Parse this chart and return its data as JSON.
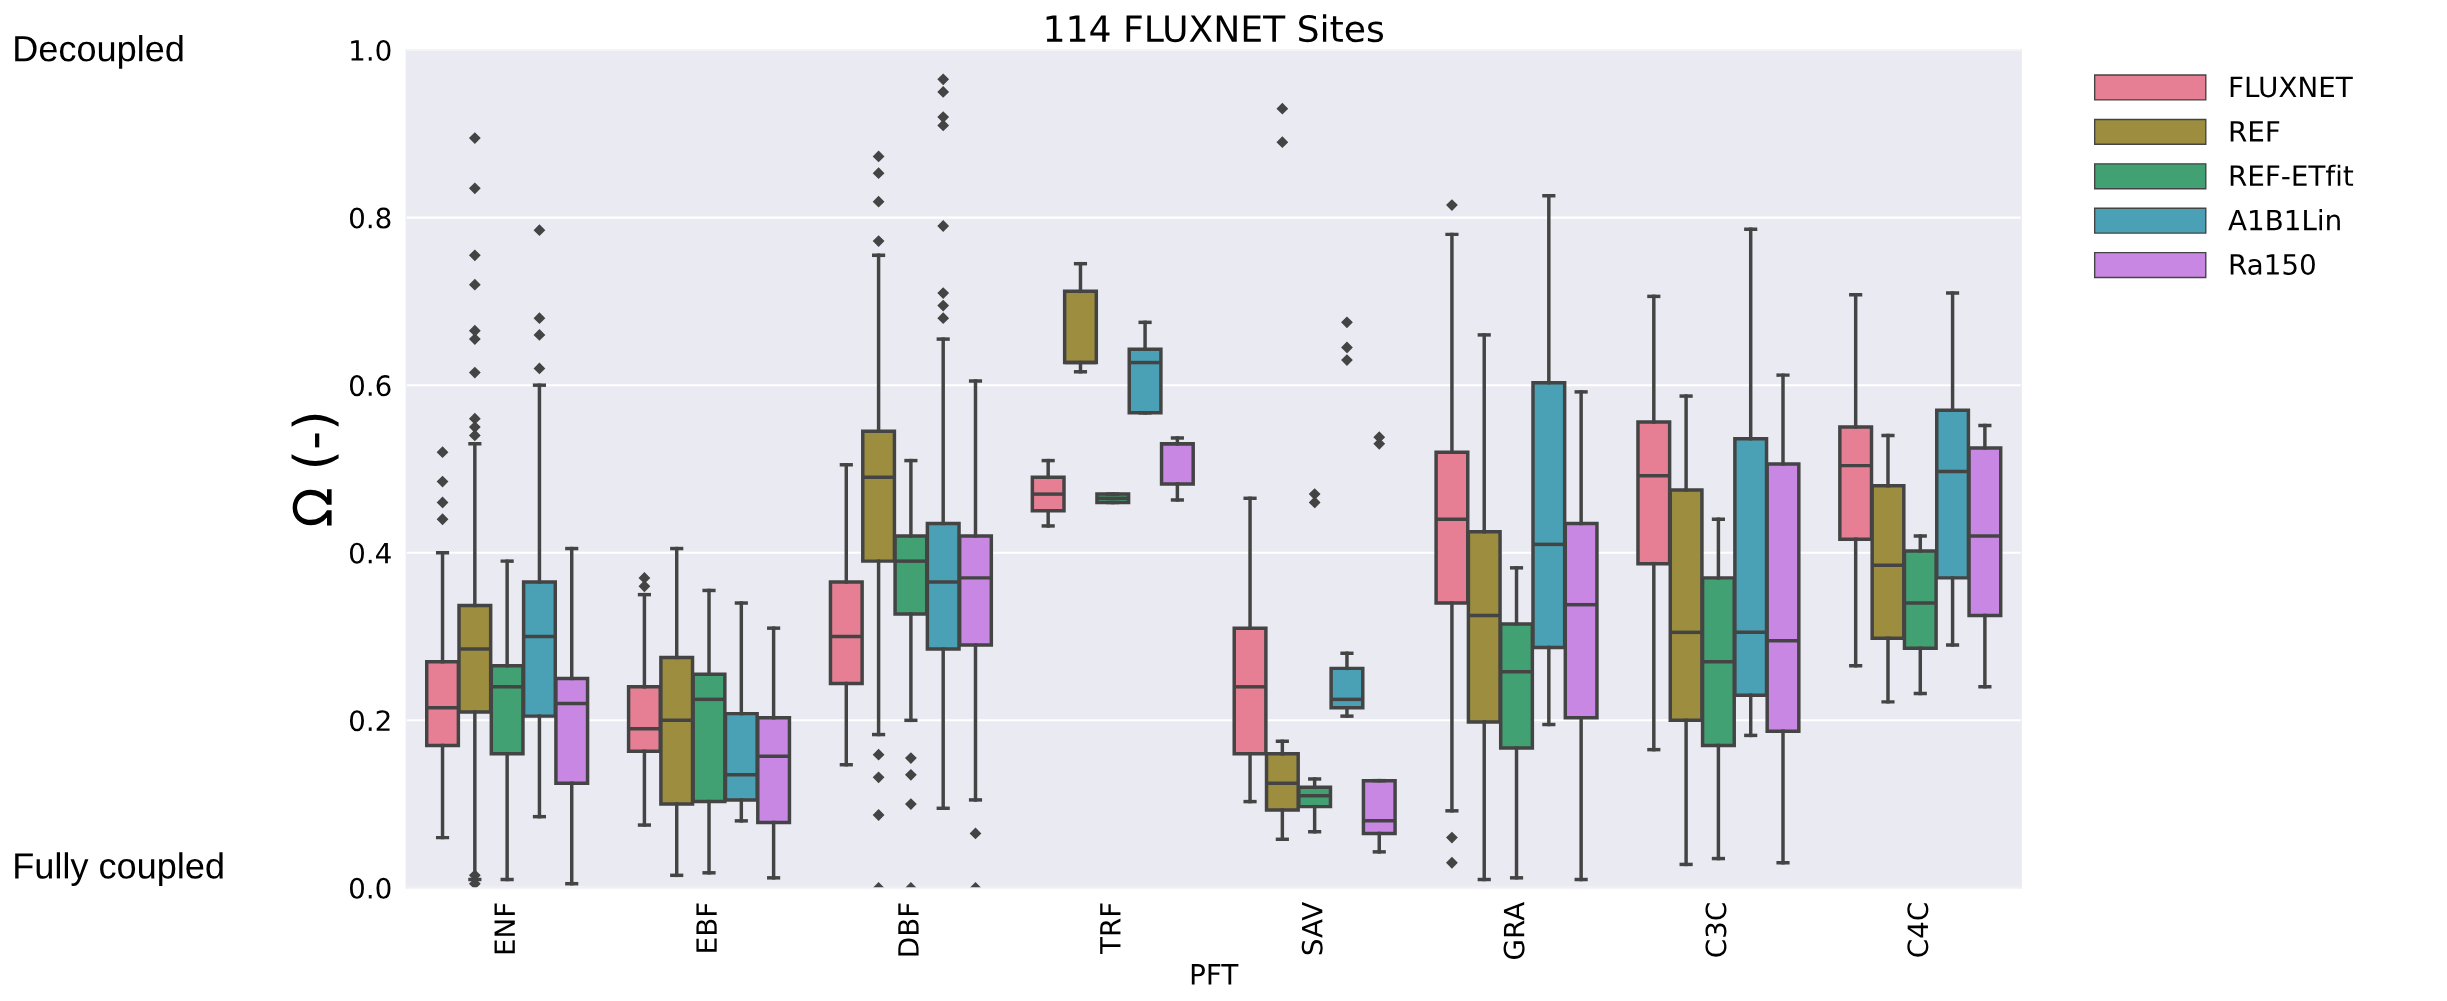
{
  "chart_data": {
    "type": "box",
    "title": "114 FLUXNET Sites",
    "xlabel": "PFT",
    "ylabel": "Ω (-)",
    "categories": [
      "ENF",
      "EBF",
      "DBF",
      "TRF",
      "SAV",
      "GRA",
      "C3C",
      "C4C"
    ],
    "ylim": [
      0,
      1.0
    ],
    "yticks": [
      {
        "value": 0,
        "label": "0.0"
      },
      {
        "value": 0.2,
        "label": "0.2"
      },
      {
        "value": 0.4,
        "label": "0.4"
      },
      {
        "value": 0.6,
        "label": "0.6"
      },
      {
        "value": 0.8,
        "label": "0.8"
      },
      {
        "value": 1.0,
        "label": "1.0"
      }
    ],
    "grid": "y",
    "legend": "top right",
    "annotations": [
      "Decoupled",
      "Fully coupled"
    ],
    "series": [
      {
        "name": "FLUXNET",
        "color": "#e67f93",
        "boxes": [
          {
            "low": 0.06,
            "q1": 0.17,
            "median": 0.215,
            "q3": 0.27,
            "high": 0.4,
            "outliers": [
              0.44,
              0.46,
              0.485,
              0.52
            ]
          },
          {
            "low": 0.075,
            "q1": 0.163,
            "median": 0.19,
            "q3": 0.24,
            "high": 0.35,
            "outliers": [
              0.36,
              0.37
            ]
          },
          {
            "low": 0.147,
            "q1": 0.244,
            "median": 0.3,
            "q3": 0.365,
            "high": 0.505
          },
          {
            "low": 0.432,
            "q1": 0.45,
            "median": 0.47,
            "q3": 0.49,
            "high": 0.51
          },
          {
            "low": 0.103,
            "q1": 0.16,
            "median": 0.24,
            "q3": 0.31,
            "high": 0.465
          },
          {
            "low": 0.092,
            "q1": 0.34,
            "median": 0.44,
            "q3": 0.52,
            "high": 0.78,
            "outliers": [
              0.03,
              0.06,
              0.815
            ]
          },
          {
            "low": 0.165,
            "q1": 0.387,
            "median": 0.492,
            "q3": 0.556,
            "high": 0.706
          },
          {
            "low": 0.265,
            "q1": 0.416,
            "median": 0.504,
            "q3": 0.55,
            "high": 0.708
          }
        ]
      },
      {
        "name": "REF",
        "color": "#9c8e3e",
        "boxes": [
          {
            "low": 0.01,
            "q1": 0.21,
            "median": 0.285,
            "q3": 0.337,
            "high": 0.53,
            "outliers": [
              0.005,
              0.015,
              0.54,
              0.55,
              0.56,
              0.615,
              0.655,
              0.665,
              0.72,
              0.755,
              0.835,
              0.895
            ]
          },
          {
            "low": 0.015,
            "q1": 0.1,
            "median": 0.2,
            "q3": 0.275,
            "high": 0.405
          },
          {
            "low": 0.183,
            "q1": 0.39,
            "median": 0.49,
            "q3": 0.545,
            "high": 0.755,
            "outliers": [
              0.0,
              0.087,
              0.132,
              0.159,
              0.772,
              0.819,
              0.853,
              0.873
            ]
          },
          {
            "low": 0.616,
            "q1": 0.627,
            "median": 0.627,
            "q3": 0.712,
            "high": 0.745
          },
          {
            "low": 0.058,
            "q1": 0.093,
            "median": 0.125,
            "q3": 0.16,
            "high": 0.175,
            "outliers": [
              0.89,
              0.93
            ]
          },
          {
            "low": 0.01,
            "q1": 0.198,
            "median": 0.325,
            "q3": 0.425,
            "high": 0.66
          },
          {
            "low": 0.028,
            "q1": 0.2,
            "median": 0.305,
            "q3": 0.475,
            "high": 0.587
          },
          {
            "low": 0.222,
            "q1": 0.298,
            "median": 0.385,
            "q3": 0.48,
            "high": 0.54
          }
        ]
      },
      {
        "name": "REF-ETfit",
        "color": "#42a173",
        "boxes": [
          {
            "low": 0.01,
            "q1": 0.16,
            "median": 0.24,
            "q3": 0.265,
            "high": 0.39
          },
          {
            "low": 0.018,
            "q1": 0.103,
            "median": 0.225,
            "q3": 0.255,
            "high": 0.355
          },
          {
            "low": 0.2,
            "q1": 0.327,
            "median": 0.39,
            "q3": 0.42,
            "high": 0.51,
            "outliers": [
              0.0,
              0.1,
              0.135,
              0.155
            ]
          },
          {
            "low": 0.46,
            "q1": 0.46,
            "median": 0.465,
            "q3": 0.47,
            "high": 0.47
          },
          {
            "low": 0.067,
            "q1": 0.097,
            "median": 0.11,
            "q3": 0.12,
            "high": 0.13,
            "outliers": [
              0.46,
              0.47
            ]
          },
          {
            "low": 0.012,
            "q1": 0.167,
            "median": 0.258,
            "q3": 0.315,
            "high": 0.382
          },
          {
            "low": 0.035,
            "q1": 0.17,
            "median": 0.27,
            "q3": 0.37,
            "high": 0.44
          },
          {
            "low": 0.232,
            "q1": 0.286,
            "median": 0.34,
            "q3": 0.402,
            "high": 0.42
          }
        ]
      },
      {
        "name": "A1B1Lin",
        "color": "#4aa0b5",
        "boxes": [
          {
            "low": 0.085,
            "q1": 0.205,
            "median": 0.3,
            "q3": 0.365,
            "high": 0.6,
            "outliers": [
              0.62,
              0.66,
              0.68,
              0.785
            ]
          },
          {
            "low": 0.08,
            "q1": 0.105,
            "median": 0.135,
            "q3": 0.208,
            "high": 0.34
          },
          {
            "low": 0.095,
            "q1": 0.285,
            "median": 0.365,
            "q3": 0.435,
            "high": 0.655,
            "outliers": [
              0.68,
              0.695,
              0.71,
              0.79,
              0.91,
              0.92,
              0.95,
              0.965
            ]
          },
          {
            "low": 0.567,
            "q1": 0.567,
            "median": 0.627,
            "q3": 0.643,
            "high": 0.675
          },
          {
            "low": 0.205,
            "q1": 0.215,
            "median": 0.225,
            "q3": 0.262,
            "high": 0.28,
            "outliers": [
              0.63,
              0.645,
              0.675
            ]
          },
          {
            "low": 0.195,
            "q1": 0.287,
            "median": 0.41,
            "q3": 0.603,
            "high": 0.826
          },
          {
            "low": 0.182,
            "q1": 0.23,
            "median": 0.305,
            "q3": 0.536,
            "high": 0.786
          },
          {
            "low": 0.29,
            "q1": 0.37,
            "median": 0.497,
            "q3": 0.57,
            "high": 0.71
          }
        ]
      },
      {
        "name": "Ra150",
        "color": "#c987e4",
        "boxes": [
          {
            "low": 0.005,
            "q1": 0.125,
            "median": 0.22,
            "q3": 0.25,
            "high": 0.405
          },
          {
            "low": 0.012,
            "q1": 0.078,
            "median": 0.157,
            "q3": 0.203,
            "high": 0.31
          },
          {
            "low": 0.105,
            "q1": 0.29,
            "median": 0.37,
            "q3": 0.42,
            "high": 0.605,
            "outliers": [
              0.0,
              0.065
            ]
          },
          {
            "low": 0.463,
            "q1": 0.482,
            "median": 0.53,
            "q3": 0.53,
            "high": 0.537
          },
          {
            "low": 0.043,
            "q1": 0.065,
            "median": 0.08,
            "q3": 0.128,
            "high": 0.128,
            "outliers": [
              0.53,
              0.538
            ]
          },
          {
            "low": 0.01,
            "q1": 0.203,
            "median": 0.338,
            "q3": 0.435,
            "high": 0.592
          },
          {
            "low": 0.03,
            "q1": 0.187,
            "median": 0.295,
            "q3": 0.506,
            "high": 0.612
          },
          {
            "low": 0.24,
            "q1": 0.325,
            "median": 0.42,
            "q3": 0.525,
            "high": 0.552
          }
        ]
      }
    ]
  }
}
